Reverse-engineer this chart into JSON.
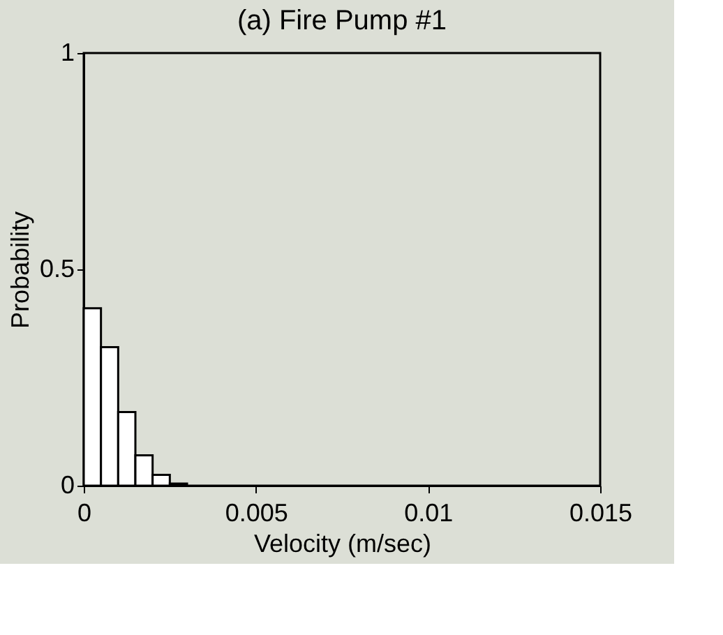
{
  "chart_data": {
    "type": "histogram",
    "title": "(a) Fire Pump #1",
    "xlabel": "Velocity (m/sec)",
    "ylabel": "Probability",
    "bins": [
      0,
      0.0005,
      0.001,
      0.0015,
      0.002,
      0.0025,
      0.003
    ],
    "values": [
      0.41,
      0.32,
      0.17,
      0.07,
      0.025,
      0.005
    ],
    "color": "#ffffff",
    "xlim": [
      0,
      0.015
    ],
    "xticks": [
      0,
      0.005,
      0.01,
      0.015
    ],
    "ylim": [
      0,
      1
    ],
    "yticks": [
      0,
      0.5,
      1
    ],
    "grid": false
  }
}
